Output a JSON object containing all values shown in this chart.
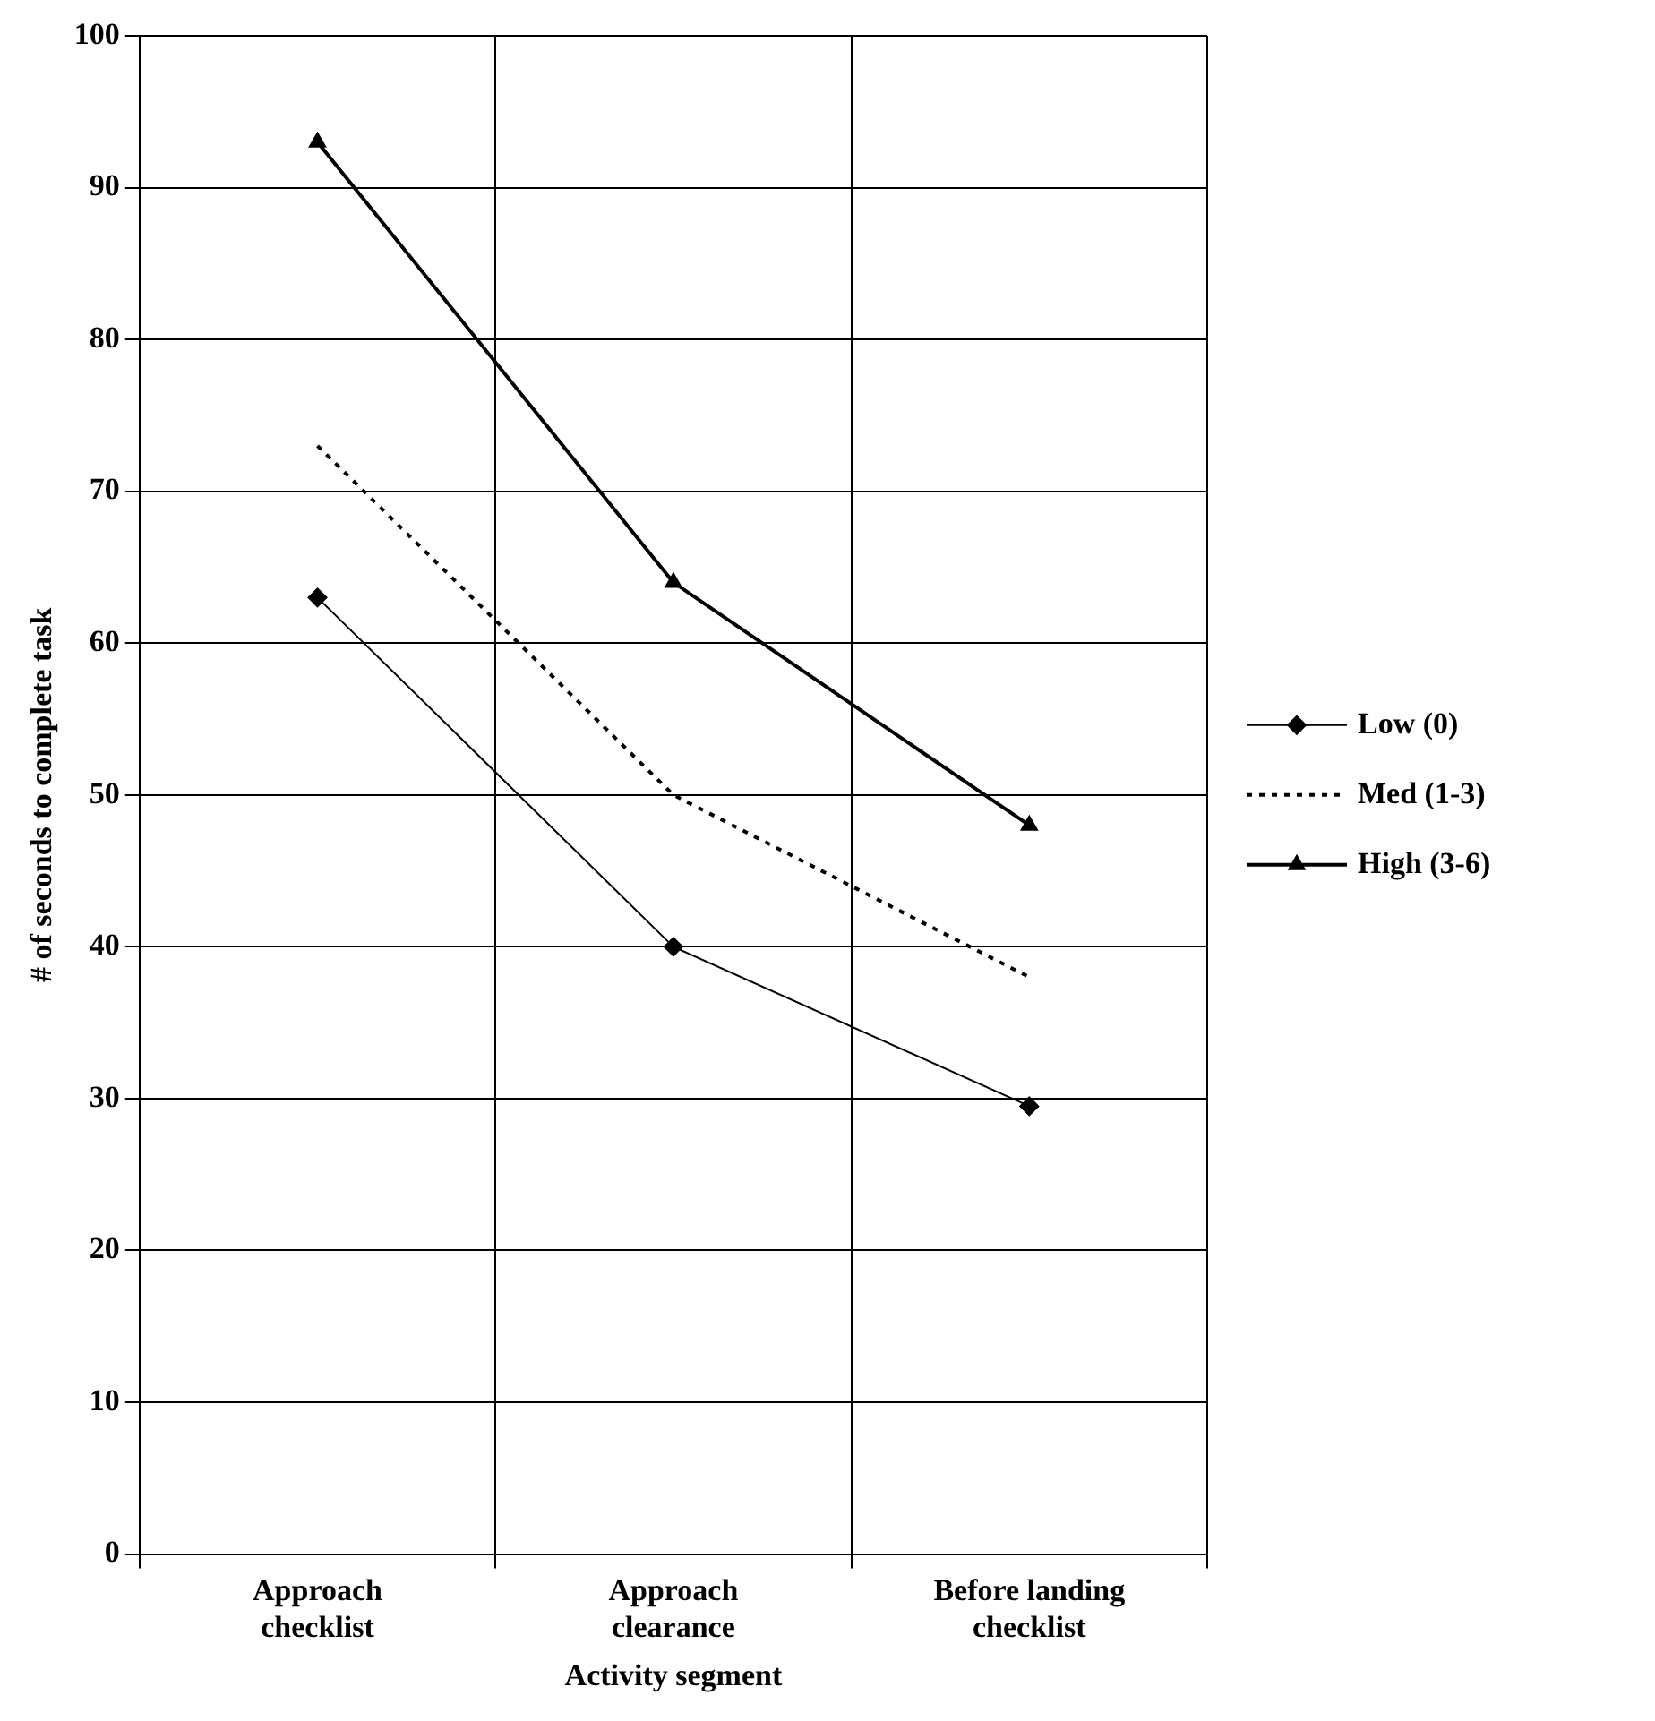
{
  "chart_data": {
    "type": "line",
    "xlabel": "Activity segment",
    "ylabel": "# of seconds to complete task",
    "categories": [
      "Approach checklist",
      "Approach clearance",
      "Before landing checklist"
    ],
    "series": [
      {
        "name": "Low (0)",
        "color": "#000000",
        "values": [
          63,
          40,
          29.5
        ],
        "marker": "diamond",
        "line_style": "solid"
      },
      {
        "name": "Med (1-3)",
        "color": "#000000",
        "values": [
          73,
          50,
          38
        ],
        "marker": "none",
        "line_style": "dotted"
      },
      {
        "name": "High (3-6)",
        "color": "#000000",
        "values": [
          93,
          64,
          48
        ],
        "marker": "triangle",
        "line_style": "solid"
      }
    ],
    "ylim": [
      0,
      100
    ],
    "yticks": [
      0,
      10,
      20,
      30,
      40,
      50,
      60,
      70,
      80,
      90,
      100
    ],
    "grid": true,
    "legend": "right"
  }
}
